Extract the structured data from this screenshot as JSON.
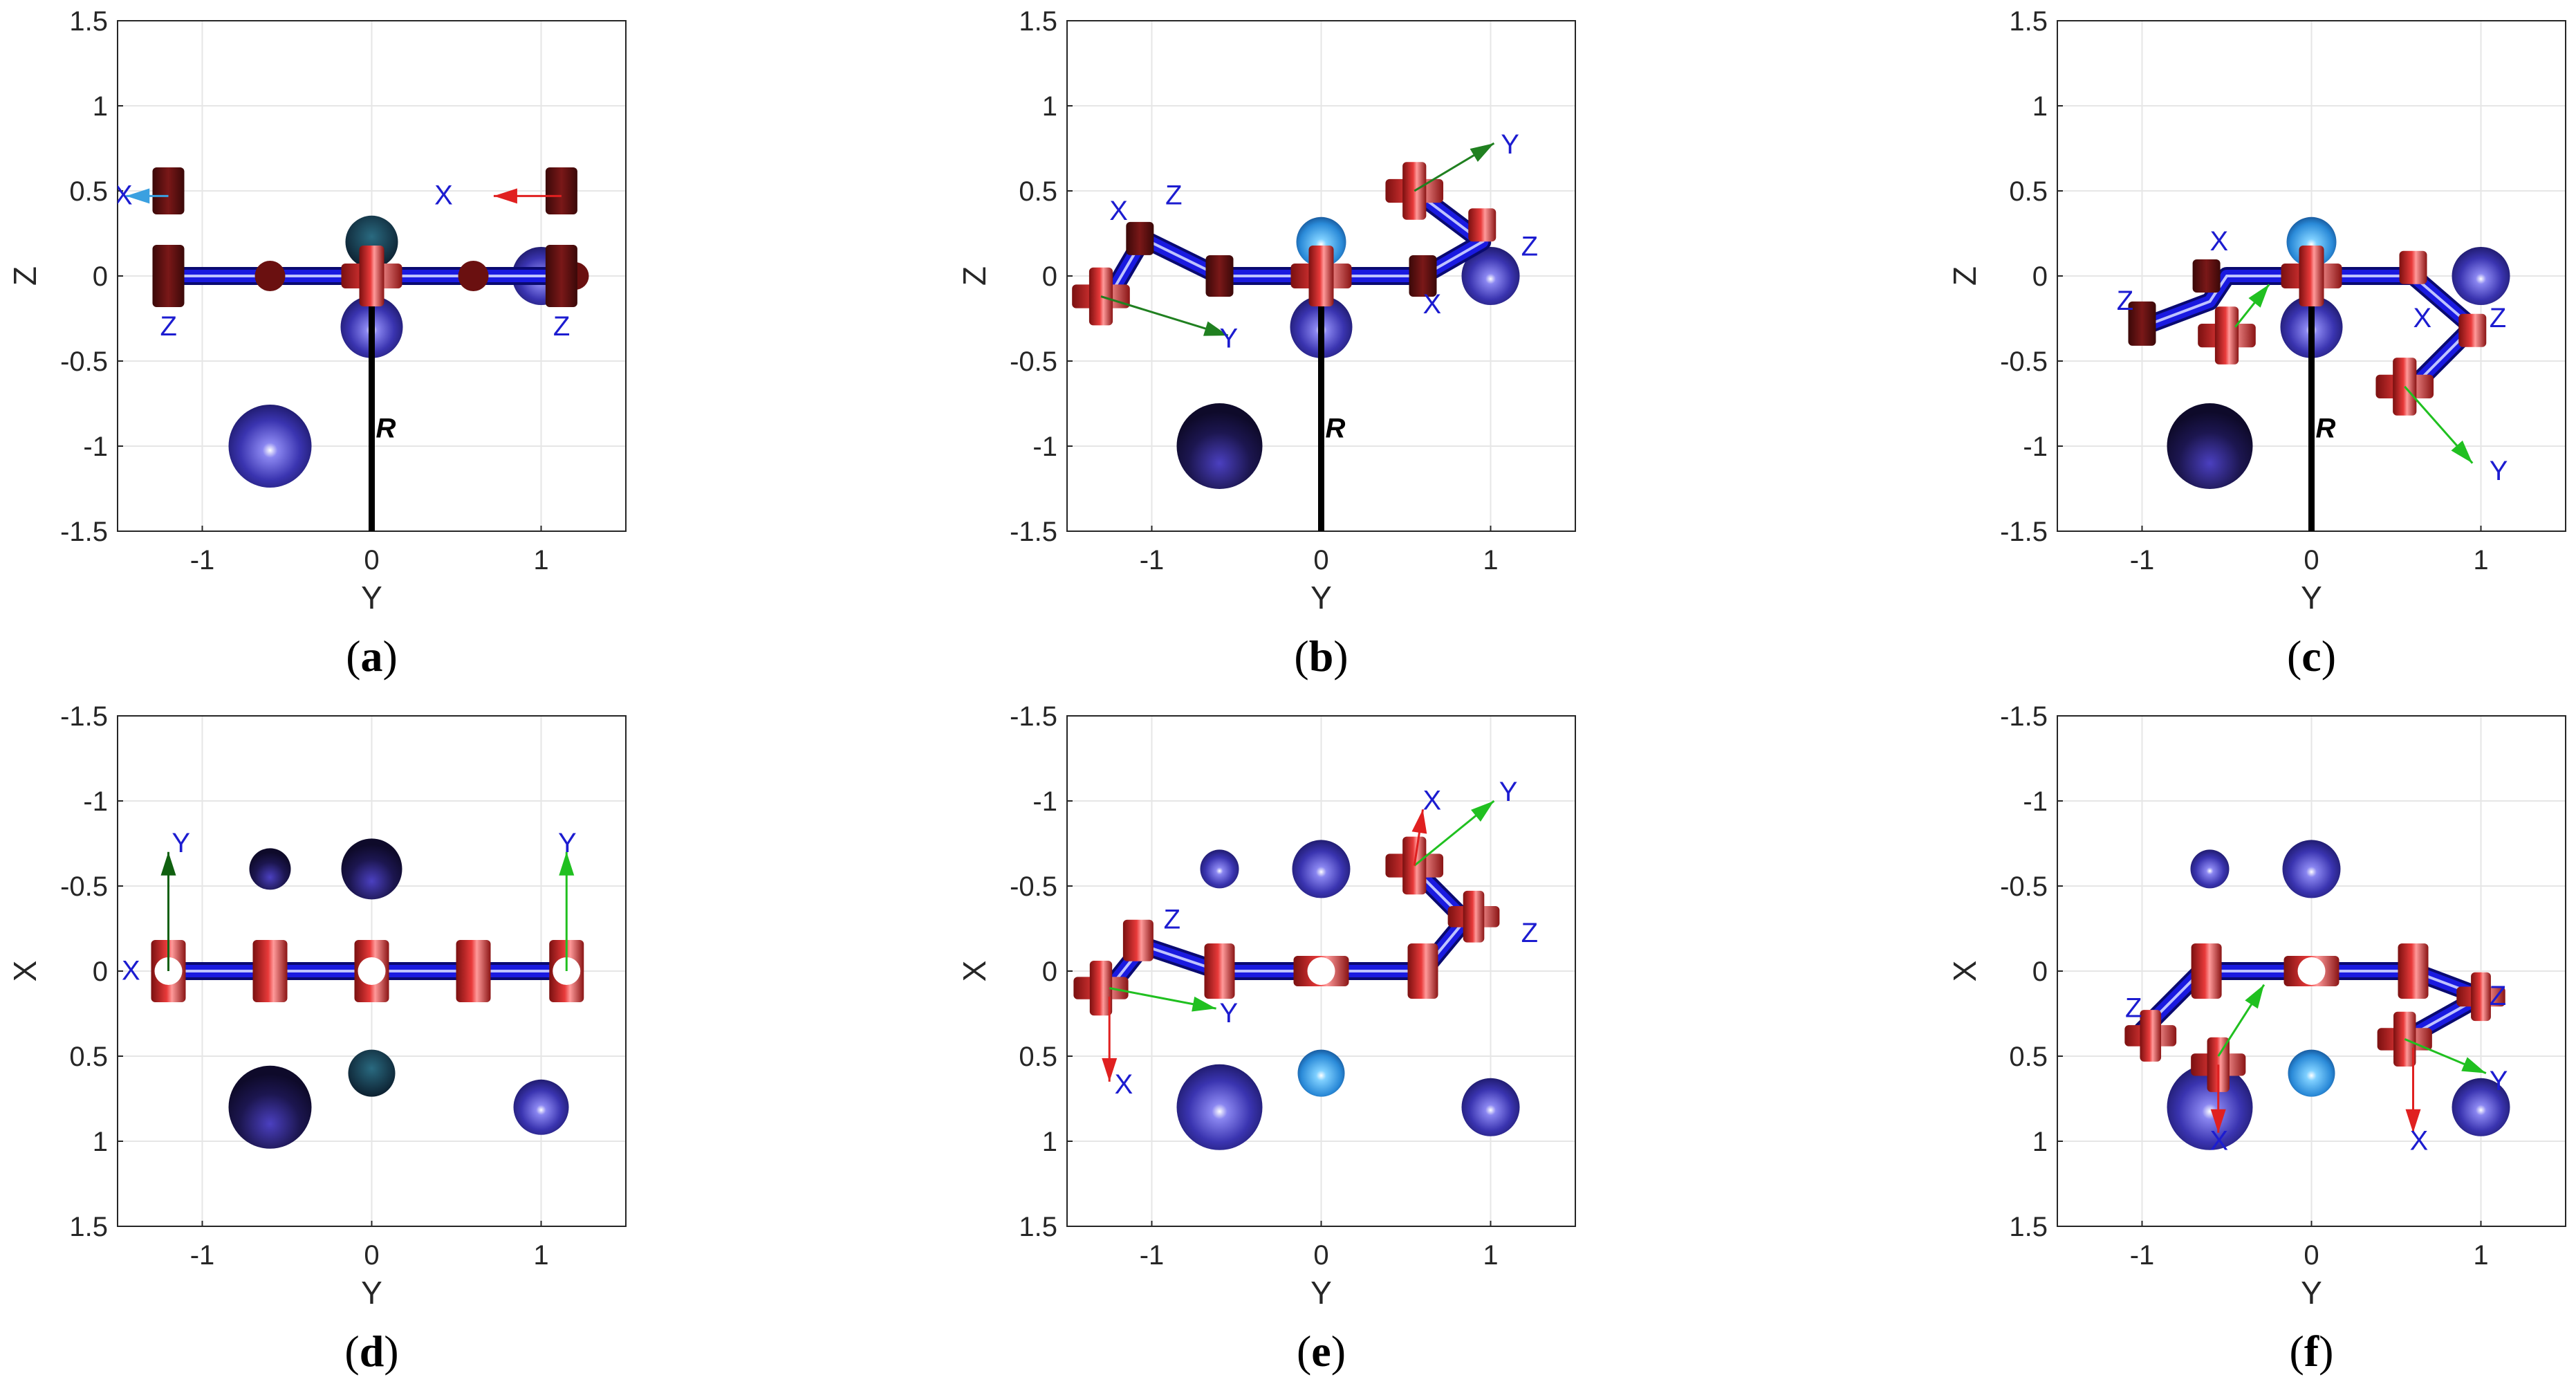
{
  "panels": [
    {
      "id": "a",
      "label": "a",
      "view": "YZ",
      "xlabel": "Y",
      "ylabel": "Z",
      "xticks": [
        "-1",
        "0",
        "1"
      ],
      "yticks": [
        "1.5",
        "1",
        "0.5",
        "0",
        "-0.5",
        "-1",
        "-1.5"
      ],
      "base_label": "R",
      "frame_labels": [
        "X",
        "X",
        "Z",
        "Z"
      ]
    },
    {
      "id": "b",
      "label": "b",
      "view": "YZ",
      "xlabel": "Y",
      "ylabel": "Z",
      "xticks": [
        "-1",
        "0",
        "1"
      ],
      "yticks": [
        "1.5",
        "1",
        "0.5",
        "0",
        "-0.5",
        "-1",
        "-1.5"
      ],
      "base_label": "R",
      "frame_labels": [
        "X",
        "Z",
        "Y",
        "Y",
        "Z",
        "X"
      ]
    },
    {
      "id": "c",
      "label": "c",
      "view": "YZ",
      "xlabel": "Y",
      "ylabel": "Z",
      "xticks": [
        "-1",
        "0",
        "1"
      ],
      "yticks": [
        "1.5",
        "1",
        "0.5",
        "0",
        "-0.5",
        "-1",
        "-1.5"
      ],
      "base_label": "R",
      "frame_labels": [
        "X",
        "Z",
        "X",
        "Z",
        "Y"
      ]
    },
    {
      "id": "d",
      "label": "d",
      "view": "YX",
      "xlabel": "Y",
      "ylabel": "X",
      "xticks": [
        "-1",
        "0",
        "1"
      ],
      "yticks": [
        "-1.5",
        "-1",
        "-0.5",
        "0",
        "0.5",
        "1",
        "1.5"
      ],
      "frame_labels": [
        "Y",
        "Y",
        "X"
      ]
    },
    {
      "id": "e",
      "label": "e",
      "view": "YX",
      "xlabel": "Y",
      "ylabel": "X",
      "xticks": [
        "-1",
        "0",
        "1"
      ],
      "yticks": [
        "-1.5",
        "-1",
        "-0.5",
        "0",
        "0.5",
        "1",
        "1.5"
      ],
      "frame_labels": [
        "X",
        "Y",
        "Z",
        "Y",
        "X",
        "Z"
      ]
    },
    {
      "id": "f",
      "label": "f",
      "view": "YX",
      "xlabel": "Y",
      "ylabel": "X",
      "xticks": [
        "-1",
        "0",
        "1"
      ],
      "yticks": [
        "-1.5",
        "-1",
        "-0.5",
        "0",
        "0.5",
        "1",
        "1.5"
      ],
      "frame_labels": [
        "Z",
        "X",
        "Z",
        "Y",
        "X"
      ]
    }
  ],
  "colors": {
    "link": "#1a1ae0",
    "joint": "#c81e1e",
    "joint_dark": "#6a1010",
    "sphere_dark": "#1a1440",
    "sphere_mid": "#3a34b0",
    "sphere_light": "#3aa6e8",
    "axis_x": "#e02020",
    "axis_y": "#20c020",
    "grid": "#e6e6e6",
    "label_blue": "#1c1cd0"
  }
}
